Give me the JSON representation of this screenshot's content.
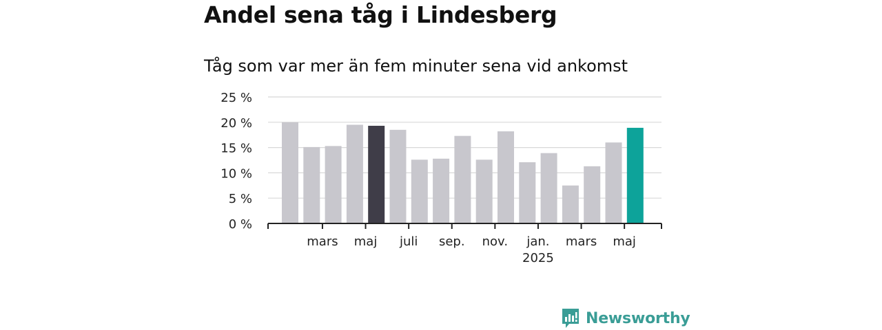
{
  "header": {
    "title": "Andel sena tåg i Lindesberg",
    "subtitle": "Tåg som var mer än fem minuter sena vid ankomst"
  },
  "brand": {
    "name": "Newsworthy",
    "color": "#3a9d96",
    "icon": "newsworthy-logo-icon"
  },
  "colors": {
    "default_bar": "#c8c7cd",
    "highlight_dark": "#3f3d48",
    "highlight_teal": "#0da39a",
    "grid": "#d8d8d8",
    "axis": "#222222"
  },
  "chart_data": {
    "type": "bar",
    "x": [
      "2024-02",
      "2024-03",
      "2024-04",
      "2024-05",
      "2024-06",
      "2024-07",
      "2024-08",
      "2024-09",
      "2024-10",
      "2024-11",
      "2024-12",
      "2025-01",
      "2025-02",
      "2025-03",
      "2025-04",
      "2025-05",
      "2025-06"
    ],
    "values": [
      20.0,
      15.1,
      15.3,
      19.5,
      19.3,
      18.5,
      12.6,
      12.8,
      17.3,
      12.6,
      18.2,
      12.1,
      13.9,
      7.5,
      11.3,
      16.0,
      18.9
    ],
    "highlight": {
      "4": "dark",
      "16": "teal"
    },
    "xticks": [
      {
        "month": "2024-03",
        "label": "mars"
      },
      {
        "month": "2024-05",
        "label": "maj"
      },
      {
        "month": "2024-07",
        "label": "juli"
      },
      {
        "month": "2024-09",
        "label": "sep."
      },
      {
        "month": "2024-11",
        "label": "nov."
      },
      {
        "month": "2025-01",
        "label": "jan.",
        "label2": "2025"
      },
      {
        "month": "2025-03",
        "label": "mars"
      },
      {
        "month": "2025-05",
        "label": "maj"
      }
    ],
    "yticks": [
      0,
      5,
      10,
      15,
      20,
      25
    ],
    "ytick_labels": [
      "0 %",
      "5 %",
      "10 %",
      "15 %",
      "20 %",
      "25 %"
    ],
    "ylim": [
      0,
      25
    ],
    "grid": true,
    "xlabel": "",
    "ylabel": ""
  }
}
